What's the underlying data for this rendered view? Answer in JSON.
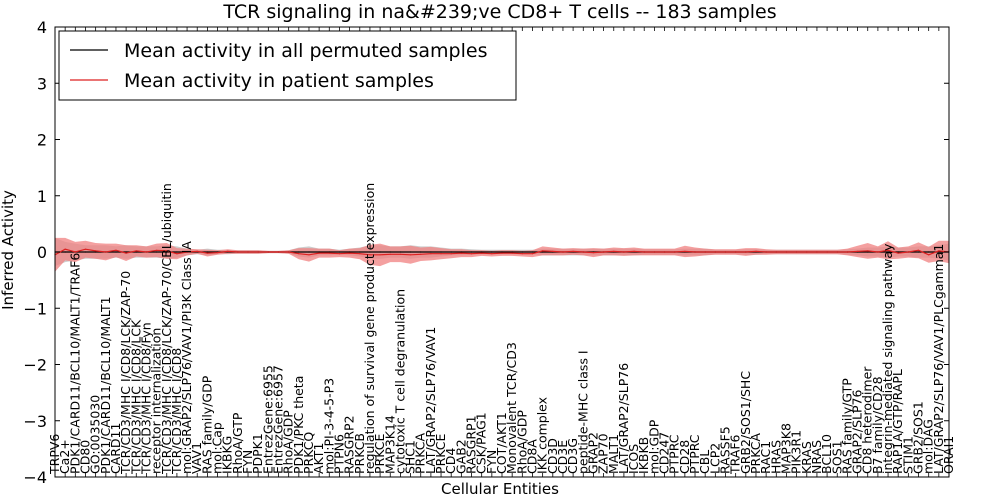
{
  "chart_data": {
    "type": "line",
    "title": "TCR signaling in na&#239;ve CD8+ T cells -- 183 samples",
    "xlabel": "Cellular Entities",
    "ylabel": "Inferred Activity",
    "ylim": [
      -4,
      4
    ],
    "yticks": [
      -4,
      -3,
      -2,
      -1,
      0,
      1,
      2,
      3,
      4
    ],
    "ytick_labels": [
      "−4",
      "−3",
      "−2",
      "−1",
      "0",
      "1",
      "2",
      "3",
      "4"
    ],
    "legend_position": "top-left",
    "legend": [
      "Mean activity in all permuted samples",
      "Mean activity in patient samples"
    ],
    "colors": {
      "permuted": "#000000",
      "patient": "#dd2020",
      "patient_band": "#f08080",
      "permuted_band": "#c8c8c8"
    },
    "categories": [
      "TRPV6",
      "Ca2+",
      "PDK1/CARD11/BCL10/MALT1/TRAF6",
      "CD80",
      "GO:0035030",
      "PDK1/CARD11/BCL10/MALT1",
      "CARD11",
      "TCR/CD3/MHC I/CD8/LCK/ZAP-70",
      "TCR/CD3/MHC I/CD8/LCK",
      "TCR/CD3/MHC I/CD8/Fyn",
      "receptor internalization",
      "TCR/CD3/MHC I/CD8/LCK/ZAP-70/CBL/ubiquitin",
      "TCR/CD3/MHC I/CD8",
      "mol:GRAP2/SLP76/VAV1/PI3K Class IA",
      "VAV1",
      "RAS family/GDP",
      "mol:Cap",
      "IKBKG",
      "RhoA/GTP",
      "FYN",
      "PDPK1",
      "EntrezGene:6955",
      "EntrezGene:6957",
      "RhoA/GDP",
      "PDK1/PKC theta",
      "PRKCQ",
      "AKT1",
      "mol:PI-3-4-5-P3",
      "PTPN6",
      "RASGRP2",
      "PRKCB",
      "regulation of survival gene product expression",
      "PRKCE",
      "MAP3K14",
      "cytotoxic T cell degranulation",
      "SHC1",
      "PRKCA",
      "LAT/GRAP2/SLP76/VAV1",
      "PRKCE",
      "CD4",
      "GAB2",
      "RASGRP1",
      "CSK/PAG1",
      "FYN",
      "COT/AKT1",
      "Monovalent TCR/CD3",
      "RhoA/GDP",
      "CD8A",
      "IKK complex",
      "CD3D",
      "CD3E",
      "CD3G",
      "peptide-MHC class I",
      "GRAP2",
      "ZAP70",
      "MALT1",
      "LAT/GRAP2/SLP76",
      "ICOS",
      "IKBKB",
      "mol:GDP",
      "CD247",
      "PTPRC",
      "CD28",
      "PTPRC",
      "CBL",
      "LCP2",
      "RASSF5",
      "TRAF6",
      "GRB2/SOS1/SHC",
      "PRKCA",
      "RAC1",
      "HRAS",
      "MAP3K8",
      "PIK3R1",
      "KRAS",
      "NRAS",
      "BCL10",
      "SOS1",
      "RAS family/GTP",
      "GRAP2/SLP76",
      "CD8 heterodimer",
      "B7 family/CD28",
      "integrin-mediated signaling pathway",
      "RAP1A/GTP/RAPL",
      "STIM1",
      "GRB2/SOS1",
      "mol:DAG",
      "LAT/GRAP2/SLP76/VAV1/PLCgamma1",
      "ORAI1"
    ],
    "series": [
      {
        "name": "Mean activity in all permuted samples",
        "values": [
          0.0,
          0.0,
          0.0,
          0.0,
          0.0,
          0.0,
          0.0,
          0.0,
          0.0,
          0.0,
          0.0,
          0.0,
          0.0,
          0.0,
          0.0,
          0.0,
          0.0,
          0.0,
          0.0,
          0.0,
          0.0,
          0.0,
          0.0,
          0.0,
          0.0,
          0.0,
          0.0,
          0.0,
          0.0,
          0.0,
          0.0,
          0.0,
          0.0,
          0.0,
          0.0,
          0.0,
          0.0,
          0.0,
          0.0,
          0.0,
          0.0,
          0.0,
          0.0,
          0.0,
          0.0,
          0.0,
          0.0,
          0.0,
          0.0,
          0.0,
          0.0,
          0.0,
          0.0,
          0.0,
          0.0,
          0.0,
          0.0,
          0.0,
          0.0,
          0.0,
          0.0,
          0.0,
          0.0,
          0.0,
          0.0,
          0.0,
          0.0,
          0.0,
          0.0,
          0.0,
          0.0,
          0.0,
          0.0,
          0.0,
          0.0,
          0.0,
          0.0,
          0.0,
          0.0,
          0.0,
          0.0,
          0.0,
          0.0,
          0.0,
          0.0,
          0.0,
          0.0,
          0.0,
          0.0
        ],
        "spread": [
          0.25,
          0.18,
          0.15,
          0.12,
          0.12,
          0.12,
          0.1,
          0.12,
          0.1,
          0.1,
          0.1,
          0.12,
          0.1,
          0.06,
          0.04,
          0.06,
          0.04,
          0.04,
          0.03,
          0.03,
          0.03,
          0.02,
          0.02,
          0.03,
          0.08,
          0.1,
          0.06,
          0.06,
          0.04,
          0.06,
          0.08,
          0.12,
          0.12,
          0.1,
          0.1,
          0.12,
          0.1,
          0.1,
          0.08,
          0.06,
          0.06,
          0.05,
          0.04,
          0.04,
          0.04,
          0.04,
          0.04,
          0.04,
          0.06,
          0.06,
          0.06,
          0.06,
          0.06,
          0.06,
          0.06,
          0.06,
          0.06,
          0.06,
          0.05,
          0.05,
          0.05,
          0.05,
          0.06,
          0.06,
          0.06,
          0.04,
          0.04,
          0.04,
          0.05,
          0.05,
          0.04,
          0.04,
          0.04,
          0.04,
          0.04,
          0.04,
          0.04,
          0.04,
          0.05,
          0.06,
          0.08,
          0.08,
          0.1,
          0.08,
          0.08,
          0.1,
          0.1,
          0.12,
          0.15
        ]
      },
      {
        "name": "Mean activity in patient samples",
        "values": [
          -0.05,
          0.05,
          0.0,
          0.05,
          0.02,
          0.0,
          0.03,
          -0.02,
          0.02,
          0.0,
          0.03,
          0.02,
          -0.03,
          0.0,
          0.01,
          -0.02,
          -0.01,
          0.01,
          0.0,
          0.0,
          0.0,
          0.0,
          0.0,
          0.0,
          -0.03,
          -0.05,
          -0.02,
          -0.02,
          -0.03,
          -0.02,
          -0.03,
          -0.05,
          -0.05,
          -0.04,
          -0.04,
          -0.05,
          -0.04,
          -0.03,
          -0.03,
          -0.03,
          -0.02,
          -0.03,
          -0.02,
          -0.03,
          -0.02,
          -0.02,
          -0.03,
          -0.03,
          0.02,
          0.01,
          0.0,
          0.01,
          0.0,
          -0.01,
          0.0,
          0.01,
          0.0,
          0.01,
          0.0,
          0.0,
          0.0,
          0.0,
          0.01,
          0.0,
          0.0,
          0.0,
          0.0,
          0.0,
          0.0,
          0.01,
          0.0,
          0.0,
          0.0,
          0.0,
          0.0,
          0.0,
          0.0,
          0.0,
          0.0,
          0.01,
          0.02,
          0.0,
          0.03,
          -0.02,
          0.0,
          0.03,
          -0.05,
          0.02,
          0.0
        ],
        "spread": [
          0.3,
          0.2,
          0.18,
          0.15,
          0.14,
          0.15,
          0.12,
          0.14,
          0.1,
          0.1,
          0.12,
          0.14,
          0.1,
          0.06,
          0.04,
          0.06,
          0.04,
          0.04,
          0.03,
          0.03,
          0.03,
          0.02,
          0.02,
          0.03,
          0.1,
          0.12,
          0.08,
          0.08,
          0.06,
          0.08,
          0.1,
          0.18,
          0.2,
          0.14,
          0.14,
          0.16,
          0.12,
          0.12,
          0.1,
          0.08,
          0.07,
          0.06,
          0.05,
          0.05,
          0.05,
          0.05,
          0.05,
          0.06,
          0.08,
          0.07,
          0.06,
          0.06,
          0.06,
          0.08,
          0.06,
          0.07,
          0.07,
          0.07,
          0.06,
          0.06,
          0.06,
          0.06,
          0.1,
          0.08,
          0.06,
          0.05,
          0.05,
          0.05,
          0.07,
          0.06,
          0.05,
          0.04,
          0.04,
          0.04,
          0.04,
          0.04,
          0.04,
          0.04,
          0.06,
          0.1,
          0.14,
          0.1,
          0.16,
          0.1,
          0.1,
          0.14,
          0.14,
          0.18,
          0.2
        ]
      }
    ]
  }
}
